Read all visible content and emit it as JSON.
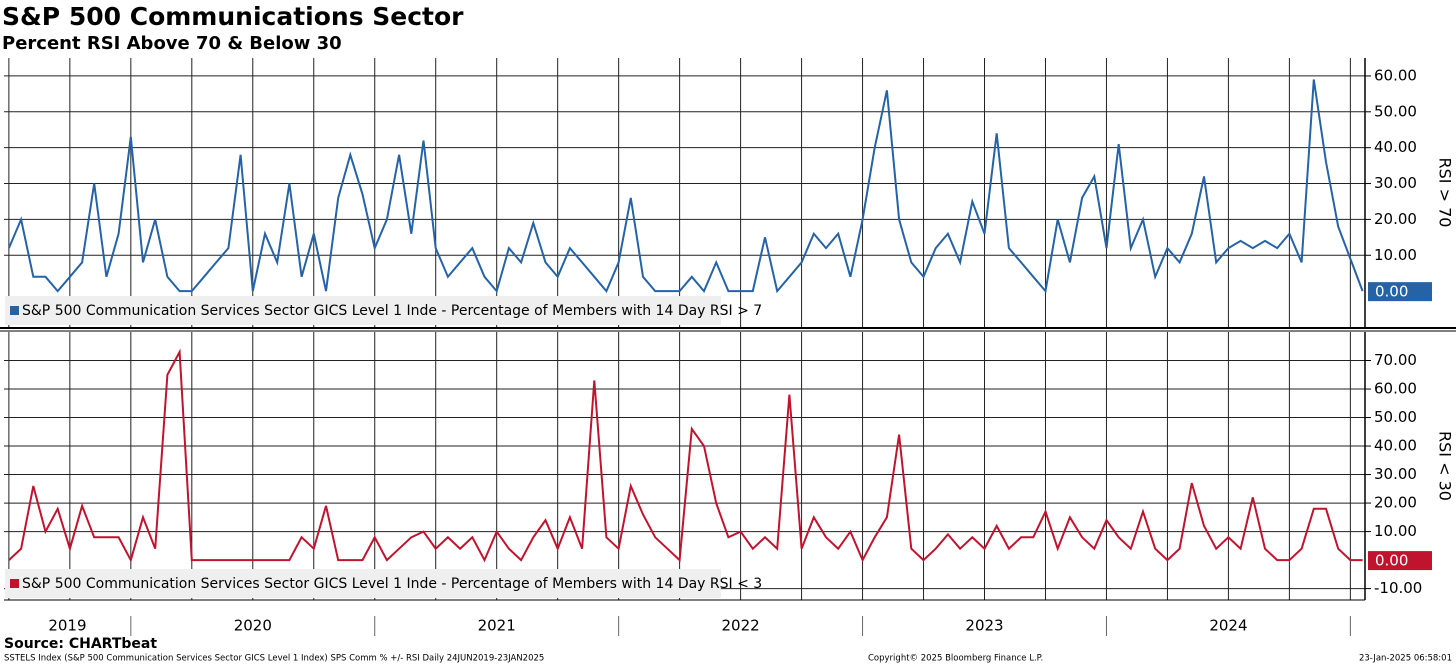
{
  "title": "S&P 500 Communications Sector",
  "subtitle": "Percent RSI Above 70 & Below 30",
  "chart_data": [
    {
      "type": "line",
      "y_label": "RSI > 70",
      "grid": true,
      "xlim": [
        2019.48,
        2025.06
      ],
      "xticks": [
        2019.5,
        2019.75,
        2020,
        2020.25,
        2020.5,
        2020.75,
        2021,
        2021.25,
        2021.5,
        2021.75,
        2022,
        2022.25,
        2022.5,
        2022.75,
        2023,
        2023.25,
        2023.5,
        2023.75,
        2024,
        2024.25,
        2024.5,
        2024.75,
        2025
      ],
      "ylim": [
        -10,
        65
      ],
      "yticks": [
        {
          "value": 10,
          "label": "10.00"
        },
        {
          "value": 20,
          "label": "20.00"
        },
        {
          "value": 30,
          "label": "30.00"
        },
        {
          "value": 40,
          "label": "40.00"
        },
        {
          "value": 50,
          "label": "50.00"
        },
        {
          "value": 60,
          "label": "60.00"
        }
      ],
      "x": [
        2019.5,
        2019.55,
        2019.6,
        2019.65,
        2019.7,
        2019.75,
        2019.8,
        2019.85,
        2019.9,
        2019.95,
        2020,
        2020.05,
        2020.1,
        2020.15,
        2020.2,
        2020.25,
        2020.3,
        2020.35,
        2020.4,
        2020.45,
        2020.5,
        2020.55,
        2020.6,
        2020.65,
        2020.7,
        2020.75,
        2020.8,
        2020.85,
        2020.9,
        2020.95,
        2021,
        2021.05,
        2021.1,
        2021.15,
        2021.2,
        2021.25,
        2021.3,
        2021.35,
        2021.4,
        2021.45,
        2021.5,
        2021.55,
        2021.6,
        2021.65,
        2021.7,
        2021.75,
        2021.8,
        2021.85,
        2021.9,
        2021.95,
        2022,
        2022.05,
        2022.1,
        2022.15,
        2022.2,
        2022.25,
        2022.3,
        2022.35,
        2022.4,
        2022.45,
        2022.5,
        2022.55,
        2022.6,
        2022.65,
        2022.7,
        2022.75,
        2022.8,
        2022.85,
        2022.9,
        2022.95,
        2023,
        2023.05,
        2023.1,
        2023.15,
        2023.2,
        2023.25,
        2023.3,
        2023.35,
        2023.4,
        2023.45,
        2023.5,
        2023.55,
        2023.6,
        2023.65,
        2023.7,
        2023.75,
        2023.8,
        2023.85,
        2023.9,
        2023.95,
        2024,
        2024.05,
        2024.1,
        2024.15,
        2024.2,
        2024.25,
        2024.3,
        2024.35,
        2024.4,
        2024.45,
        2024.5,
        2024.55,
        2024.6,
        2024.65,
        2024.7,
        2024.75,
        2024.8,
        2024.85,
        2024.9,
        2024.95,
        2025,
        2025.05
      ],
      "series": [
        {
          "name": "S&P 500 Communication Services Sector GICS Level 1 Inde - Percentage of Members with 14 Day RSI > 7",
          "color": "#2563a6",
          "current_value_label": "0.00",
          "values": [
            12,
            20,
            4,
            4,
            0,
            4,
            8,
            30,
            4,
            16,
            43,
            8,
            20,
            4,
            0,
            0,
            4,
            8,
            12,
            38,
            0,
            16,
            8,
            30,
            4,
            16,
            0,
            26,
            38,
            27,
            12,
            20,
            38,
            16,
            42,
            12,
            4,
            8,
            12,
            4,
            0,
            12,
            8,
            19,
            8,
            4,
            12,
            8,
            4,
            0,
            8,
            26,
            4,
            0,
            0,
            0,
            4,
            0,
            8,
            0,
            0,
            0,
            15,
            0,
            4,
            8,
            16,
            12,
            16,
            4,
            20,
            40,
            56,
            20,
            8,
            4,
            12,
            16,
            8,
            25,
            16,
            44,
            12,
            8,
            4,
            0,
            20,
            8,
            26,
            32,
            12,
            41,
            12,
            20,
            4,
            12,
            8,
            16,
            32,
            8,
            12,
            14,
            12,
            14,
            12,
            16,
            8,
            59,
            36,
            18,
            9,
            0
          ]
        }
      ]
    },
    {
      "type": "line",
      "y_label": "RSI < 30",
      "grid": true,
      "xlim": [
        2019.48,
        2025.06
      ],
      "xticks": [
        2019.5,
        2019.75,
        2020,
        2020.25,
        2020.5,
        2020.75,
        2021,
        2021.25,
        2021.5,
        2021.75,
        2022,
        2022.25,
        2022.5,
        2022.75,
        2023,
        2023.25,
        2023.5,
        2023.75,
        2024,
        2024.25,
        2024.5,
        2024.75,
        2025
      ],
      "ylim": [
        -14,
        80
      ],
      "yticks": [
        {
          "value": -10,
          "label": "-10.00"
        },
        {
          "value": 10,
          "label": "10.00"
        },
        {
          "value": 20,
          "label": "20.00"
        },
        {
          "value": 30,
          "label": "30.00"
        },
        {
          "value": 40,
          "label": "40.00"
        },
        {
          "value": 50,
          "label": "50.00"
        },
        {
          "value": 60,
          "label": "60.00"
        },
        {
          "value": 70,
          "label": "70.00"
        }
      ],
      "year_labels": [
        {
          "value": 2019,
          "label": "2019"
        },
        {
          "value": 2020,
          "label": "2020"
        },
        {
          "value": 2021,
          "label": "2021"
        },
        {
          "value": 2022,
          "label": "2022"
        },
        {
          "value": 2023,
          "label": "2023"
        },
        {
          "value": 2024,
          "label": "2024"
        }
      ],
      "x": [
        2019.5,
        2019.55,
        2019.6,
        2019.65,
        2019.7,
        2019.75,
        2019.8,
        2019.85,
        2019.9,
        2019.95,
        2020,
        2020.05,
        2020.1,
        2020.15,
        2020.2,
        2020.25,
        2020.3,
        2020.35,
        2020.4,
        2020.45,
        2020.5,
        2020.55,
        2020.6,
        2020.65,
        2020.7,
        2020.75,
        2020.8,
        2020.85,
        2020.9,
        2020.95,
        2021,
        2021.05,
        2021.1,
        2021.15,
        2021.2,
        2021.25,
        2021.3,
        2021.35,
        2021.4,
        2021.45,
        2021.5,
        2021.55,
        2021.6,
        2021.65,
        2021.7,
        2021.75,
        2021.8,
        2021.85,
        2021.9,
        2021.95,
        2022,
        2022.05,
        2022.1,
        2022.15,
        2022.2,
        2022.25,
        2022.3,
        2022.35,
        2022.4,
        2022.45,
        2022.5,
        2022.55,
        2022.6,
        2022.65,
        2022.7,
        2022.75,
        2022.8,
        2022.85,
        2022.9,
        2022.95,
        2023,
        2023.05,
        2023.1,
        2023.15,
        2023.2,
        2023.25,
        2023.3,
        2023.35,
        2023.4,
        2023.45,
        2023.5,
        2023.55,
        2023.6,
        2023.65,
        2023.7,
        2023.75,
        2023.8,
        2023.85,
        2023.9,
        2023.95,
        2024,
        2024.05,
        2024.1,
        2024.15,
        2024.2,
        2024.25,
        2024.3,
        2024.35,
        2024.4,
        2024.45,
        2024.5,
        2024.55,
        2024.6,
        2024.65,
        2024.7,
        2024.75,
        2024.8,
        2024.85,
        2024.9,
        2024.95,
        2025,
        2025.05
      ],
      "series": [
        {
          "name": "S&P 500 Communication Services Sector GICS Level 1 Inde - Percentage of Members with 14 Day RSI < 3",
          "color": "#c0142e",
          "current_value_label": "0.00",
          "values": [
            0,
            4,
            26,
            10,
            18,
            4,
            19,
            8,
            8,
            8,
            0,
            15,
            4,
            65,
            73,
            0,
            0,
            0,
            0,
            0,
            0,
            0,
            0,
            0,
            8,
            4,
            19,
            0,
            0,
            0,
            8,
            0,
            4,
            8,
            10,
            4,
            8,
            4,
            8,
            0,
            10,
            4,
            0,
            8,
            14,
            4,
            15,
            4,
            63,
            8,
            4,
            26,
            16,
            8,
            4,
            0,
            46,
            40,
            20,
            8,
            10,
            4,
            8,
            4,
            58,
            4,
            15,
            8,
            4,
            10,
            0,
            8,
            15,
            44,
            4,
            0,
            4,
            9,
            4,
            8,
            4,
            12,
            4,
            8,
            8,
            17,
            4,
            15,
            8,
            4,
            14,
            8,
            4,
            17,
            4,
            0,
            4,
            27,
            12,
            4,
            8,
            4,
            22,
            4,
            0,
            0,
            4,
            18,
            18,
            4,
            0,
            0
          ]
        }
      ]
    }
  ],
  "footer": {
    "source": "Source: CHARTbeat",
    "description": "SSTELS Index (S&P 500 Communication Services Sector GICS Level 1 Index) SPS Comm % +/- RSI  Daily 24JUN2019-23JAN2025",
    "copyright": "Copyright© 2025 Bloomberg Finance L.P.",
    "timestamp": "23-Jan-2025 06:58:01"
  }
}
